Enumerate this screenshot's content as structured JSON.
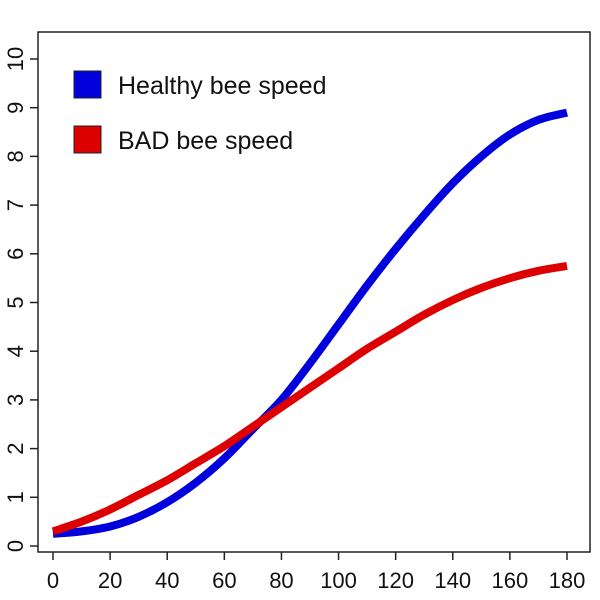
{
  "chart_data": {
    "type": "line",
    "title": "",
    "xlabel": "",
    "ylabel": "",
    "xlim": [
      0,
      180
    ],
    "ylim": [
      0,
      10
    ],
    "grid": false,
    "legend_position": "top-left",
    "x_ticks": [
      "0",
      "20",
      "40",
      "60",
      "80",
      "100",
      "120",
      "140",
      "160",
      "180"
    ],
    "y_ticks": [
      "0",
      "1",
      "2",
      "3",
      "4",
      "5",
      "6",
      "7",
      "8",
      "9",
      "10"
    ],
    "series": [
      {
        "name": "Healthy bee speed",
        "color": "#0000dd",
        "x": [
          0,
          10,
          20,
          30,
          40,
          50,
          60,
          70,
          80,
          90,
          100,
          110,
          120,
          130,
          140,
          150,
          160,
          170,
          180
        ],
        "y": [
          0.25,
          0.3,
          0.4,
          0.6,
          0.9,
          1.3,
          1.8,
          2.4,
          3.0,
          3.75,
          4.55,
          5.35,
          6.1,
          6.8,
          7.45,
          8.0,
          8.45,
          8.75,
          8.9
        ]
      },
      {
        "name": "BAD bee speed",
        "color": "#dd0000",
        "x": [
          0,
          10,
          20,
          30,
          40,
          50,
          60,
          70,
          80,
          90,
          100,
          110,
          120,
          130,
          140,
          150,
          160,
          170,
          180
        ],
        "y": [
          0.3,
          0.5,
          0.75,
          1.05,
          1.35,
          1.7,
          2.05,
          2.45,
          2.85,
          3.25,
          3.65,
          4.05,
          4.4,
          4.75,
          5.05,
          5.3,
          5.5,
          5.65,
          5.75
        ]
      }
    ]
  }
}
